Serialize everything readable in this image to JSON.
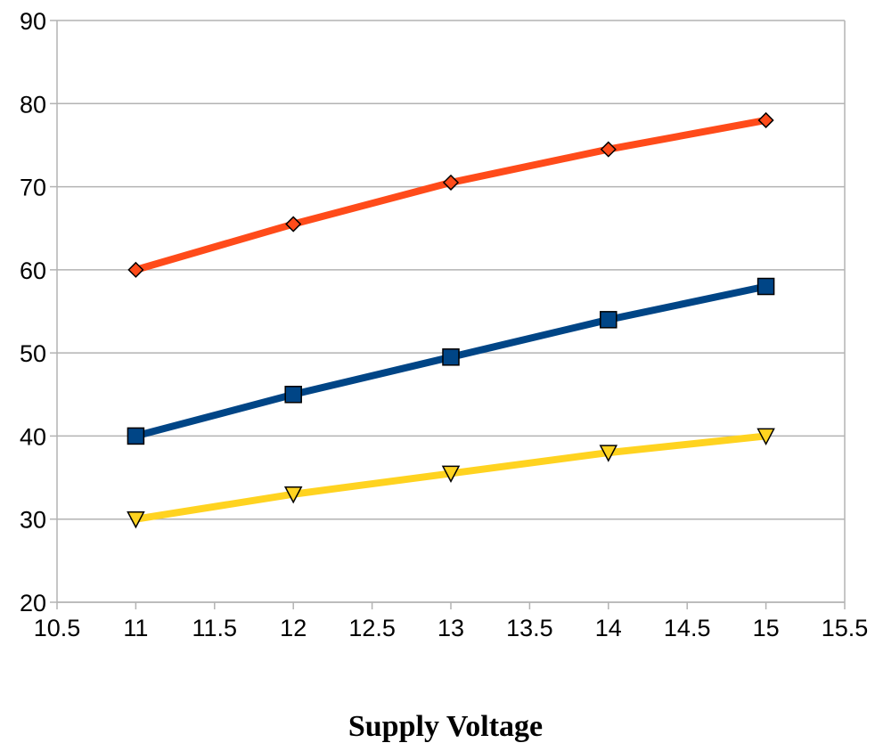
{
  "chart_data": {
    "type": "line",
    "title": "",
    "xlabel": "Supply Voltage",
    "ylabel": "",
    "xlim": [
      10.5,
      15.5
    ],
    "ylim": [
      20,
      90
    ],
    "xticks": [
      10.5,
      11,
      11.5,
      12,
      12.5,
      13,
      13.5,
      14,
      14.5,
      15,
      15.5
    ],
    "yticks": [
      20,
      30,
      40,
      50,
      60,
      70,
      80,
      90
    ],
    "grid": true,
    "legend": "none",
    "x": [
      11,
      12,
      13,
      14,
      15
    ],
    "series": [
      {
        "values": [
          60,
          65.5,
          70.5,
          74.5,
          78
        ],
        "color": "#ff4b1a",
        "marker": "diamond"
      },
      {
        "values": [
          40,
          45,
          49.5,
          54,
          58
        ],
        "color": "#004586",
        "marker": "square"
      },
      {
        "values": [
          30,
          33,
          35.5,
          38,
          40
        ],
        "color": "#ffd320",
        "marker": "triangle-down"
      }
    ]
  }
}
